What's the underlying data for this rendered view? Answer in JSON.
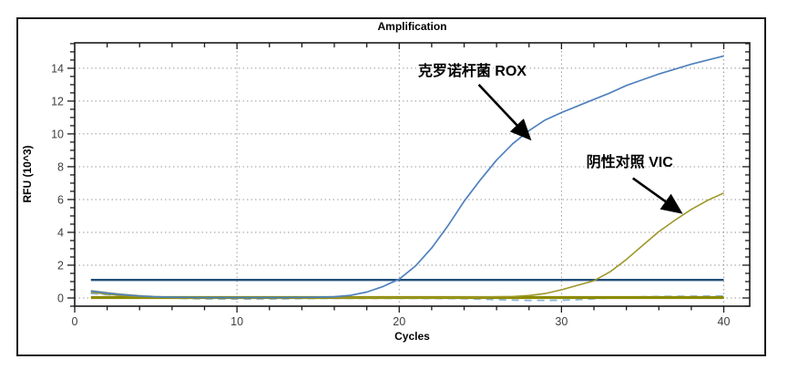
{
  "figure": {
    "title": "Amplification",
    "xlabel": "Cycles",
    "ylabel": "RFU (10^3)",
    "background_color": "#ffffff",
    "border_color": "#1a1a1a"
  },
  "chart_data": {
    "type": "line",
    "title": "Amplification",
    "xlabel": "Cycles",
    "ylabel": "RFU (10^3)",
    "xlim": [
      0,
      41.6
    ],
    "ylim": [
      -0.5,
      15.55
    ],
    "x_major_ticks": [
      0,
      10,
      20,
      30,
      40
    ],
    "x_tick_labels": [
      "0",
      "10",
      "20",
      "30",
      "40"
    ],
    "x_minor_step": 2,
    "y_major_ticks": [
      0,
      2,
      4,
      6,
      8,
      10,
      12,
      14
    ],
    "y_tick_labels": [
      "0",
      "2",
      "4",
      "6",
      "8",
      "10",
      "12",
      "14"
    ],
    "y_minor_step": 0.5,
    "grid": "dotted",
    "grid_color": "#9a9a9a",
    "frame_color": "#1a1a1a",
    "tick_label_color": "#3f3f3f",
    "legend": "none",
    "series": [
      {
        "name": "pale-yellow-baseline-trace",
        "color": "#cfc98f",
        "width": 1.5,
        "dash": "none",
        "points": [
          [
            1,
            0.46
          ],
          [
            2,
            0.34
          ],
          [
            3,
            0.23
          ],
          [
            4,
            0.15
          ],
          [
            5,
            0.09
          ],
          [
            6,
            0.05
          ],
          [
            7,
            0.03
          ],
          [
            10,
            0.02
          ],
          [
            15,
            0.02
          ],
          [
            20,
            0.02
          ],
          [
            25,
            0.02
          ],
          [
            30,
            0.02
          ],
          [
            35,
            0.02
          ],
          [
            40,
            0.02
          ]
        ]
      },
      {
        "name": "navy-dashed-drift-trace",
        "color": "#2a5784",
        "width": 1.8,
        "dash": "7 5",
        "points": [
          [
            1,
            0.32
          ],
          [
            2,
            0.24
          ],
          [
            3,
            0.17
          ],
          [
            4,
            0.11
          ],
          [
            5,
            0.07
          ],
          [
            6,
            0.05
          ],
          [
            7,
            0.03
          ],
          [
            8,
            0.01
          ],
          [
            10,
            0.0
          ],
          [
            13,
            0.01
          ],
          [
            15,
            0.03
          ],
          [
            20,
            0.03
          ],
          [
            25,
            0.02
          ],
          [
            30,
            0.02
          ],
          [
            35,
            0.02
          ],
          [
            40,
            0.02
          ]
        ]
      },
      {
        "name": "lightblue-dashed-drift-trace",
        "color": "#8fb4d8",
        "width": 1.8,
        "dash": "8 6",
        "points": [
          [
            1,
            0.28
          ],
          [
            2,
            0.2
          ],
          [
            3,
            0.13
          ],
          [
            4,
            0.07
          ],
          [
            5,
            0.03
          ],
          [
            6,
            0.0
          ],
          [
            7,
            -0.04
          ],
          [
            9,
            -0.06
          ],
          [
            11,
            -0.06
          ],
          [
            13,
            -0.05
          ],
          [
            15,
            -0.02
          ],
          [
            18,
            -0.02
          ],
          [
            21,
            -0.02
          ],
          [
            24,
            -0.04
          ],
          [
            26,
            -0.1
          ],
          [
            28,
            -0.15
          ],
          [
            30,
            -0.14
          ],
          [
            31,
            -0.1
          ],
          [
            33,
            0.0
          ],
          [
            35,
            0.08
          ],
          [
            37,
            0.1
          ],
          [
            40,
            0.12
          ]
        ]
      },
      {
        "name": "olive-baseline-line",
        "color": "#8c8b00",
        "width": 3.2,
        "dash": "none",
        "points": [
          [
            1,
            0.03
          ],
          [
            40,
            0.03
          ]
        ]
      },
      {
        "name": "threshold-line",
        "color": "#1f4e79",
        "width": 2.4,
        "dash": "none",
        "points": [
          [
            1,
            1.1
          ],
          [
            40,
            1.1
          ]
        ]
      },
      {
        "name": "vic-negative-control-curve",
        "color": "#9e9728",
        "width": 1.6,
        "dash": "none",
        "points": [
          [
            1,
            0.35
          ],
          [
            2,
            0.24
          ],
          [
            3,
            0.15
          ],
          [
            4,
            0.09
          ],
          [
            5,
            0.05
          ],
          [
            6,
            0.03
          ],
          [
            7,
            0.02
          ],
          [
            8,
            0.02
          ],
          [
            9,
            0.02
          ],
          [
            10,
            0.02
          ],
          [
            11,
            0.02
          ],
          [
            12,
            0.02
          ],
          [
            13,
            0.02
          ],
          [
            14,
            0.02
          ],
          [
            15,
            0.02
          ],
          [
            16,
            0.02
          ],
          [
            17,
            0.02
          ],
          [
            18,
            0.02
          ],
          [
            19,
            0.02
          ],
          [
            20,
            0.02
          ],
          [
            21,
            0.02
          ],
          [
            22,
            0.02
          ],
          [
            23,
            0.03
          ],
          [
            24,
            0.04
          ],
          [
            25,
            0.05
          ],
          [
            26,
            0.07
          ],
          [
            27,
            0.09
          ],
          [
            28,
            0.15
          ],
          [
            29,
            0.27
          ],
          [
            30,
            0.5
          ],
          [
            31,
            0.78
          ],
          [
            32,
            1.05
          ],
          [
            33,
            1.6
          ],
          [
            34,
            2.35
          ],
          [
            35,
            3.2
          ],
          [
            36,
            4.05
          ],
          [
            37,
            4.75
          ],
          [
            38,
            5.4
          ],
          [
            39,
            5.95
          ],
          [
            40,
            6.4
          ]
        ]
      },
      {
        "name": "rox-cronobacter-curve",
        "color": "#4f81bd",
        "width": 1.7,
        "dash": "none",
        "points": [
          [
            1,
            0.42
          ],
          [
            2,
            0.3
          ],
          [
            3,
            0.2
          ],
          [
            4,
            0.12
          ],
          [
            5,
            0.07
          ],
          [
            6,
            0.05
          ],
          [
            7,
            0.04
          ],
          [
            8,
            0.03
          ],
          [
            9,
            0.03
          ],
          [
            10,
            0.03
          ],
          [
            11,
            0.03
          ],
          [
            12,
            0.03
          ],
          [
            13,
            0.03
          ],
          [
            14,
            0.04
          ],
          [
            15,
            0.05
          ],
          [
            16,
            0.08
          ],
          [
            17,
            0.16
          ],
          [
            18,
            0.36
          ],
          [
            19,
            0.7
          ],
          [
            20,
            1.15
          ],
          [
            21,
            1.95
          ],
          [
            22,
            3.05
          ],
          [
            23,
            4.4
          ],
          [
            24,
            5.9
          ],
          [
            25,
            7.2
          ],
          [
            26,
            8.4
          ],
          [
            27,
            9.4
          ],
          [
            28,
            10.2
          ],
          [
            29,
            10.85
          ],
          [
            30,
            11.3
          ],
          [
            31,
            11.7
          ],
          [
            32,
            12.1
          ],
          [
            33,
            12.5
          ],
          [
            34,
            12.95
          ],
          [
            35,
            13.3
          ],
          [
            36,
            13.65
          ],
          [
            37,
            13.95
          ],
          [
            38,
            14.25
          ],
          [
            39,
            14.5
          ],
          [
            40,
            14.75
          ]
        ]
      }
    ],
    "threshold_value": 1.1,
    "annotations": [
      {
        "label": "克罗诺杆菌 ROX",
        "text_x": 24.5,
        "text_y": 13.95,
        "arrow": {
          "x1": 24.9,
          "y1": 13.0,
          "x2": 28.0,
          "y2": 9.75
        }
      },
      {
        "label": "阴性对照 VIC",
        "text_x": 34.2,
        "text_y": 8.4,
        "arrow": {
          "x1": 34.4,
          "y1": 7.3,
          "x2": 37.3,
          "y2": 5.25
        }
      }
    ]
  }
}
